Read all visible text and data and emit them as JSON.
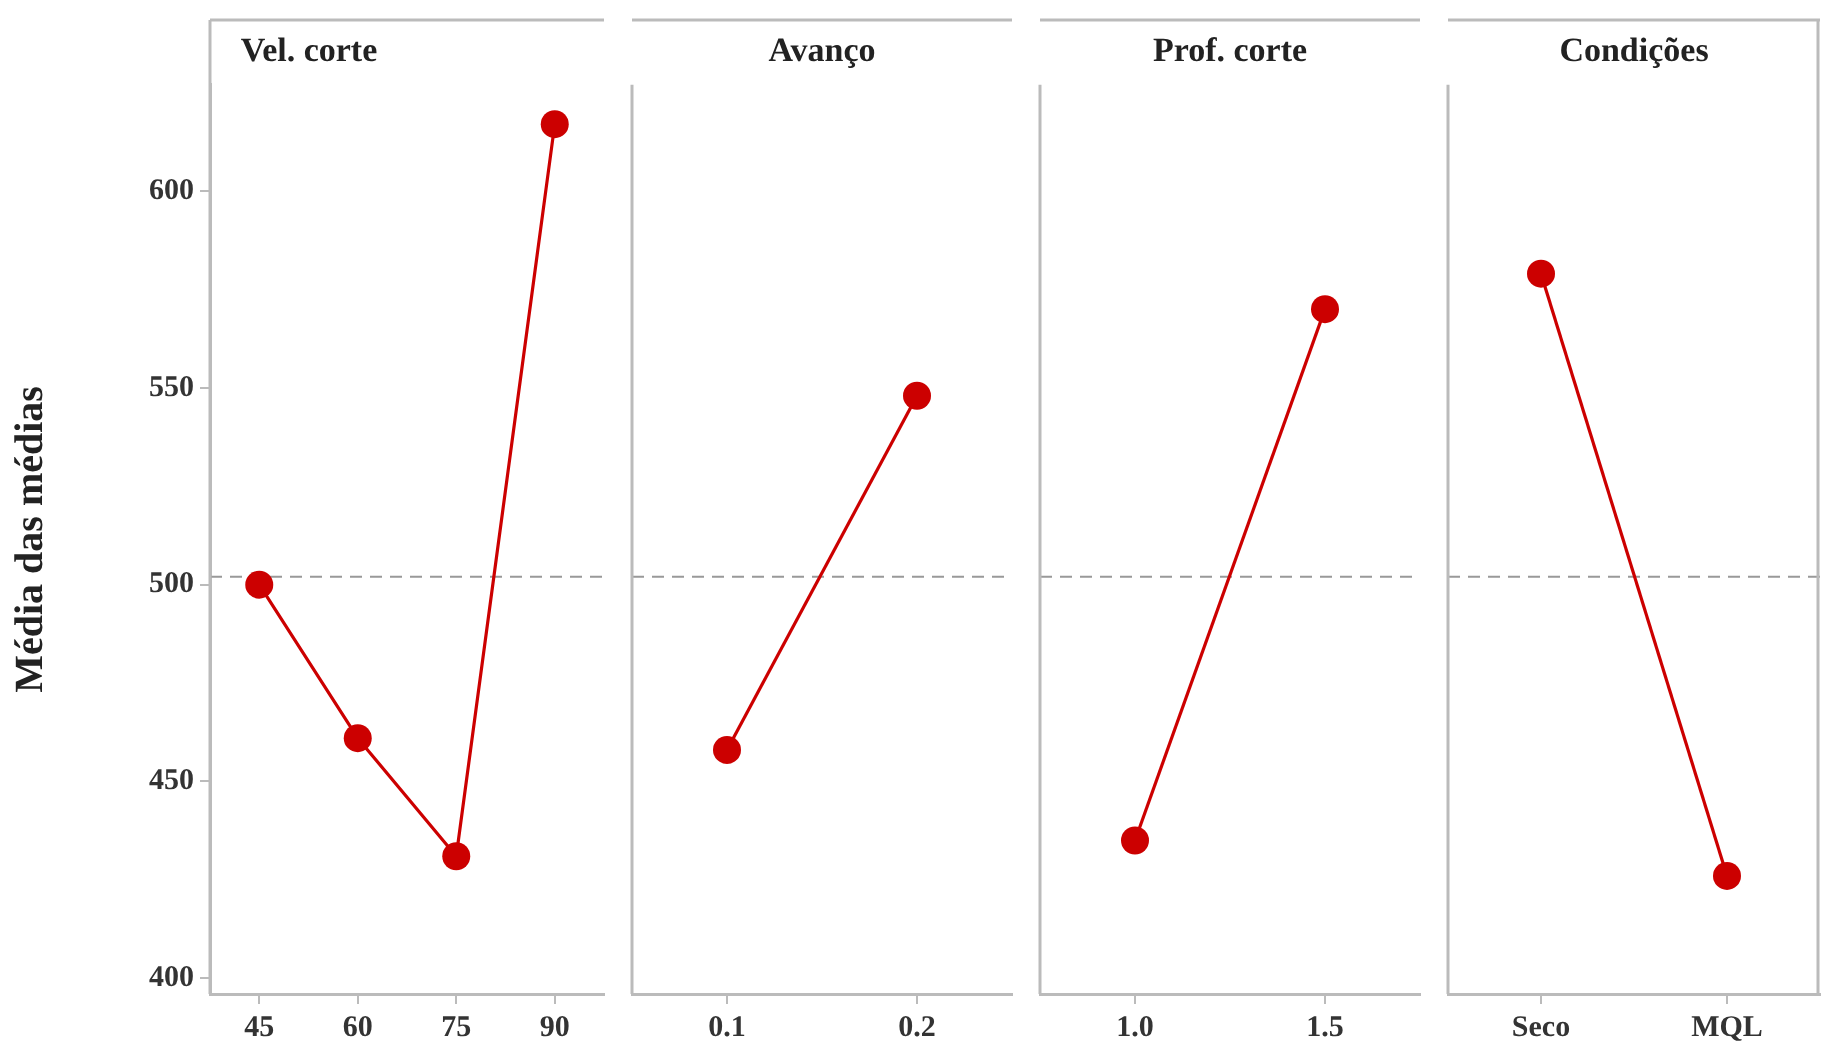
{
  "chart_data": [
    {
      "type": "line",
      "title": "Vel. corte",
      "ylabel": "Média das médias",
      "categories": [
        "45",
        "60",
        "75",
        "90"
      ],
      "values": [
        500,
        461,
        431,
        617
      ],
      "color": "#cc0000",
      "marker": "circle",
      "ylim": [
        396,
        627
      ],
      "yticks": [
        400,
        450,
        500,
        550,
        600
      ],
      "grid": false,
      "ref_lines": [
        {
          "axis": "y",
          "value": 502,
          "color": "#999999",
          "line_style": "dashed"
        }
      ]
    },
    {
      "type": "line",
      "title": "Avanço",
      "categories": [
        "0.1",
        "0.2"
      ],
      "values": [
        458,
        548
      ],
      "color": "#cc0000",
      "marker": "circle",
      "ylim": [
        396,
        627
      ],
      "yticks": [
        400,
        450,
        500,
        550,
        600
      ],
      "tick_labels": "x",
      "grid": false,
      "ref_lines": [
        {
          "axis": "y",
          "value": 502,
          "color": "#999999",
          "line_style": "dashed"
        }
      ]
    },
    {
      "type": "line",
      "title": "Prof. corte",
      "categories": [
        "1.0",
        "1.5"
      ],
      "values": [
        435,
        570
      ],
      "color": "#cc0000",
      "marker": "circle",
      "ylim": [
        396,
        627
      ],
      "yticks": [
        400,
        450,
        500,
        550,
        600
      ],
      "tick_labels": "x",
      "grid": false,
      "ref_lines": [
        {
          "axis": "y",
          "value": 502,
          "color": "#999999",
          "line_style": "dashed"
        }
      ]
    },
    {
      "type": "line",
      "title": "Condições",
      "categories": [
        "Seco",
        "MQL"
      ],
      "values": [
        579,
        426
      ],
      "color": "#cc0000",
      "marker": "circle",
      "ylim": [
        396,
        627
      ],
      "yticks": [
        400,
        450,
        500,
        550,
        600
      ],
      "tick_labels": "x",
      "grid": false,
      "ref_lines": [
        {
          "axis": "y",
          "value": 502,
          "color": "#999999",
          "line_style": "dashed"
        }
      ]
    }
  ]
}
